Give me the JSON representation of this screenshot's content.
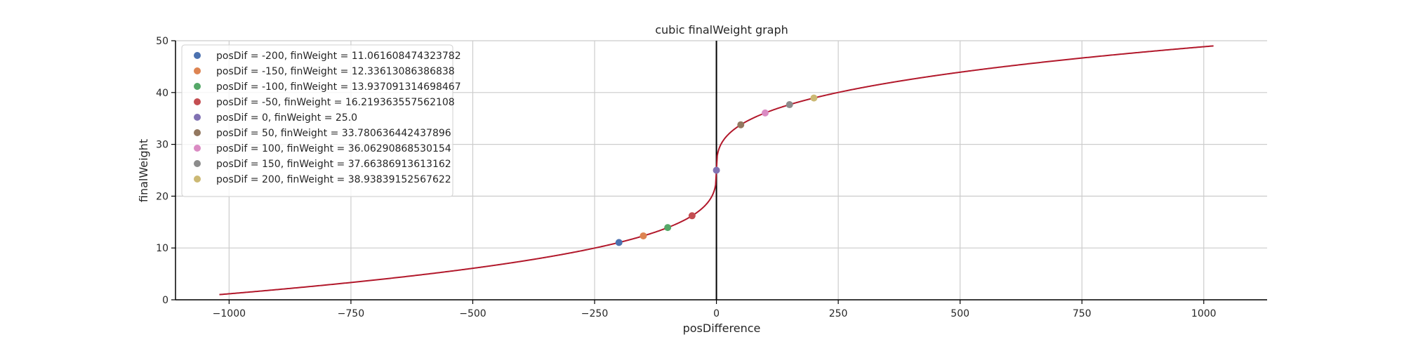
{
  "chart_data": {
    "type": "line",
    "title": "cubic finalWeight graph",
    "xlabel": "posDifference",
    "ylabel": "finalWeight",
    "xlim": [
      -1110,
      1130
    ],
    "ylim": [
      0,
      50
    ],
    "xticks": [
      -1000,
      -750,
      -500,
      -250,
      0,
      250,
      500,
      750,
      1000
    ],
    "xtick_labels": [
      "−1000",
      "−750",
      "−500",
      "−250",
      "0",
      "250",
      "500",
      "750",
      "1000"
    ],
    "yticks": [
      0,
      10,
      20,
      30,
      40,
      50
    ],
    "ytick_labels": [
      "0",
      "10",
      "20",
      "30",
      "40",
      "50"
    ],
    "grid": true,
    "legend_position": "top-left",
    "vertical_line_at_x": 0,
    "curve": {
      "formula": "y = 25 + 24 * cbrt(x / 1020)",
      "x_range": [
        -1020,
        1020
      ],
      "color": "#b2182b"
    },
    "points": [
      {
        "x": -200,
        "y": 11.061608474323782,
        "label": "posDif = -200, finWeight = 11.061608474323782",
        "color": "#4c72b0"
      },
      {
        "x": -150,
        "y": 12.33613086386838,
        "label": "posDif = -150, finWeight = 12.33613086386838",
        "color": "#dd8452"
      },
      {
        "x": -100,
        "y": 13.937091314698467,
        "label": "posDif = -100, finWeight = 13.937091314698467",
        "color": "#55a868"
      },
      {
        "x": -50,
        "y": 16.219363557562108,
        "label": "posDif = -50, finWeight = 16.219363557562108",
        "color": "#c44e52"
      },
      {
        "x": 0,
        "y": 25.0,
        "label": "posDif = 0, finWeight = 25.0",
        "color": "#8172b3"
      },
      {
        "x": 50,
        "y": 33.780636442437896,
        "label": "posDif = 50, finWeight = 33.780636442437896",
        "color": "#937860"
      },
      {
        "x": 100,
        "y": 36.06290868530154,
        "label": "posDif = 100, finWeight = 36.06290868530154",
        "color": "#da8bc3"
      },
      {
        "x": 150,
        "y": 37.66386913613162,
        "label": "posDif = 150, finWeight = 37.66386913613162",
        "color": "#8c8c8c"
      },
      {
        "x": 200,
        "y": 38.93839152567622,
        "label": "posDif = 200, finWeight = 38.93839152567622",
        "color": "#ccb974"
      }
    ]
  }
}
